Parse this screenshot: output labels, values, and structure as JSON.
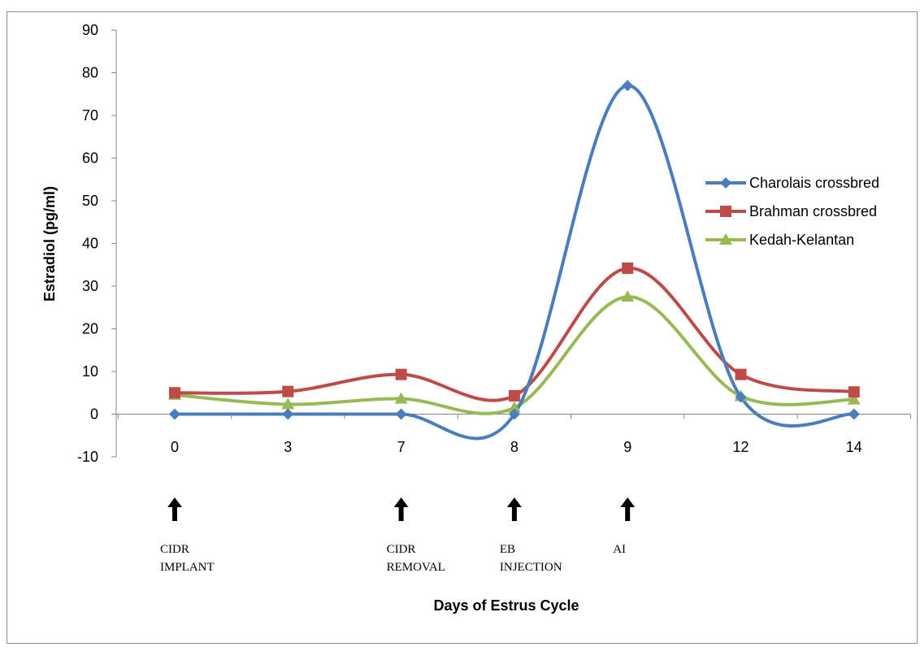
{
  "chart_data": {
    "type": "line",
    "title": "",
    "xlabel": "Days of Estrus Cycle",
    "ylabel": "Estradiol (pg/ml)",
    "categories": [
      "0",
      "3",
      "7",
      "8",
      "9",
      "12",
      "14"
    ],
    "ylim": [
      -10,
      90
    ],
    "yticks": [
      -10,
      0,
      10,
      20,
      30,
      40,
      50,
      60,
      70,
      80,
      90
    ],
    "grid": false,
    "smooth": true,
    "legend_position": "right",
    "series": [
      {
        "name": "Charolais crossbred",
        "color": "#4A7EBB",
        "marker": "diamond",
        "values": [
          0,
          0,
          0,
          0,
          77,
          4,
          0
        ]
      },
      {
        "name": "Brahman crossbred",
        "color": "#BE4B48",
        "marker": "square",
        "values": [
          5,
          5.3,
          9.3,
          4.3,
          34.2,
          9.3,
          5.2
        ]
      },
      {
        "name": "Kedah-Kelantan",
        "color": "#98B954",
        "marker": "triangle",
        "values": [
          4.5,
          2.3,
          3.6,
          1.5,
          27.5,
          4.2,
          3.4
        ]
      }
    ],
    "annotations": [
      {
        "category": "0",
        "lines": [
          "CIDR",
          "IMPLANT"
        ]
      },
      {
        "category": "7",
        "lines": [
          "CIDR",
          "REMOVAL"
        ]
      },
      {
        "category": "8",
        "lines": [
          "EB",
          "INJECTION"
        ]
      },
      {
        "category": "9",
        "lines": [
          "AI"
        ]
      }
    ]
  }
}
